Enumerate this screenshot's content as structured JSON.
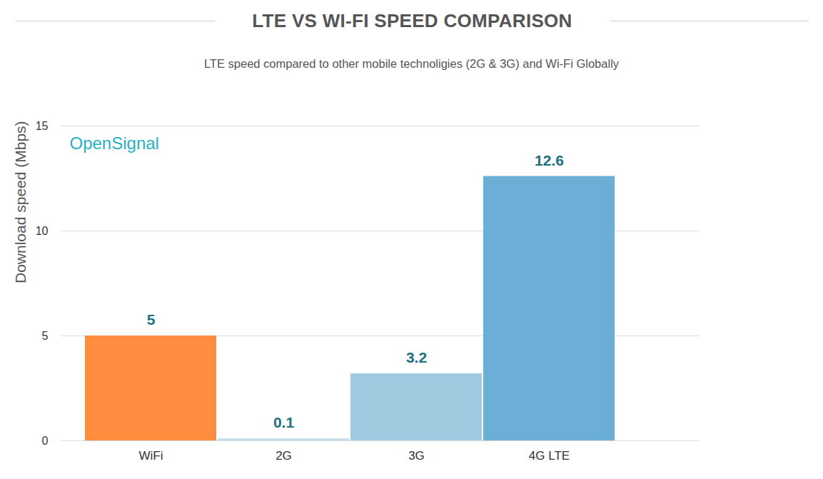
{
  "chart_data": {
    "type": "bar",
    "title": "LTE VS WI-FI SPEED COMPARISON",
    "subtitle": "LTE speed compared to other mobile technoligies (2G & 3G) and Wi-Fi Globally",
    "y_label": "Download speed (Mbps)",
    "annotations": [
      "OpenSignal"
    ],
    "categories": [
      "WiFi",
      "2G",
      "3G",
      "4G LTE"
    ],
    "values": [
      5,
      0.1,
      3.2,
      12.6
    ],
    "colors": [
      "#ff8c3f",
      "#c6dff0",
      "#9fcae0",
      "#6baed6"
    ],
    "ylim": [
      0,
      15
    ],
    "yticks": [
      0,
      5,
      10,
      15
    ],
    "grid": true,
    "data_labels": true
  }
}
